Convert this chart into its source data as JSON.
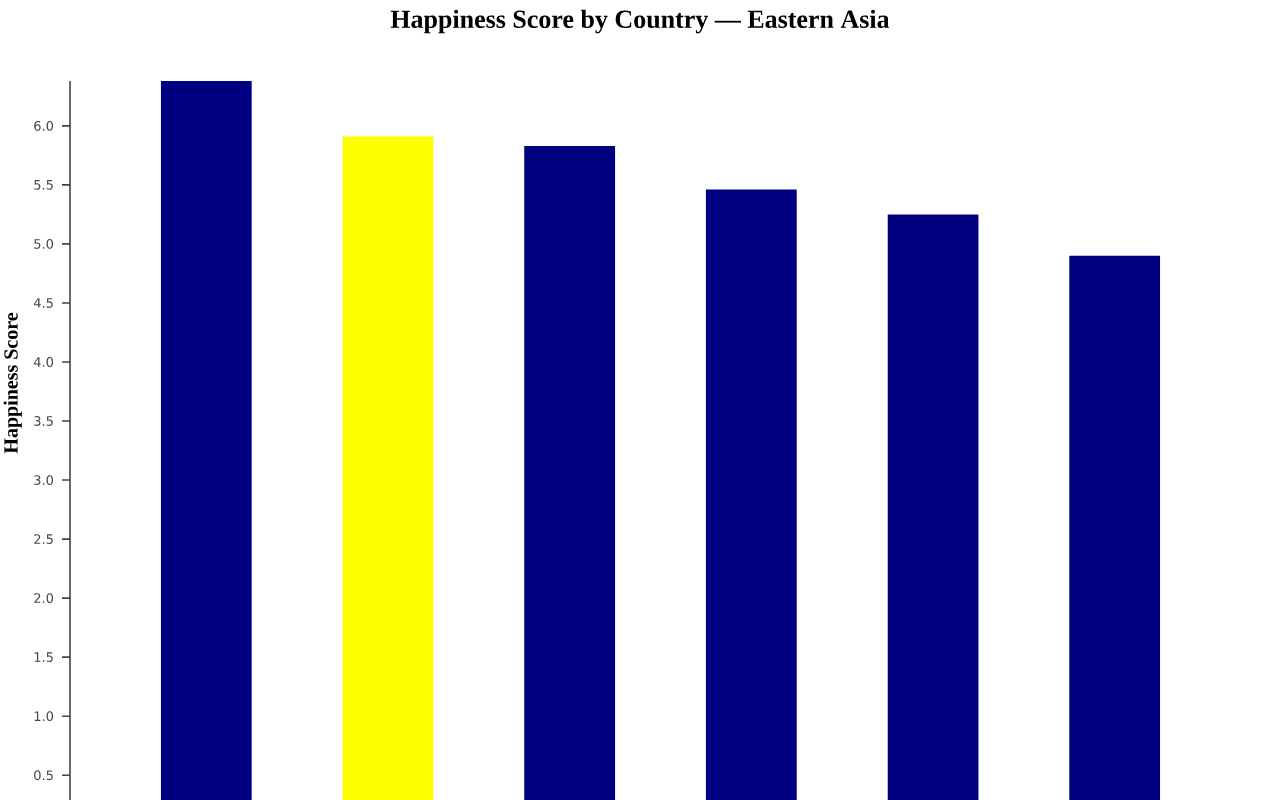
{
  "chart_data": {
    "type": "bar",
    "title": "Happiness Score by Country — Eastern Asia",
    "ylabel": "Happiness Score",
    "categories": [
      null,
      null,
      null,
      null,
      null,
      null
    ],
    "values": [
      6.38,
      5.91,
      5.83,
      5.46,
      5.25,
      4.9
    ],
    "colors": [
      "#000080",
      "#ffff00",
      "#000080",
      "#000080",
      "#000080",
      "#000080"
    ],
    "ylim": [
      0.29,
      6.38
    ],
    "yticks": [
      0.5,
      {
        "value": 1,
        "label": "1.0"
      },
      1.5,
      {
        "value": 2,
        "label": "2.0"
      },
      2.5,
      {
        "value": 3,
        "label": "3.0"
      },
      3.5,
      {
        "value": 4,
        "label": "4.0"
      },
      4.5,
      {
        "value": 5,
        "label": "5.0"
      },
      5.5,
      {
        "value": 6,
        "label": "6.0"
      }
    ],
    "tick_labels": "y"
  }
}
